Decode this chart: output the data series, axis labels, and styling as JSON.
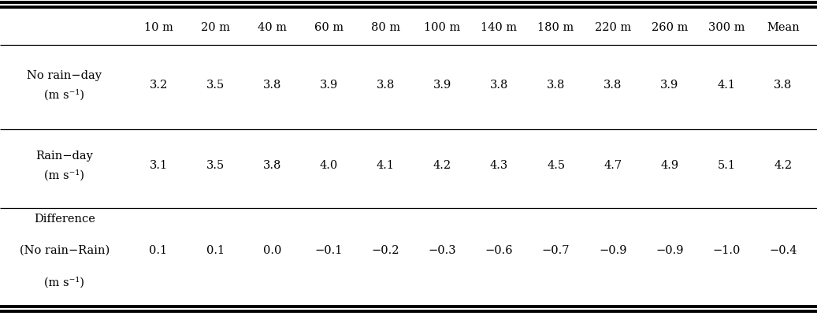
{
  "columns": [
    "10 m",
    "20 m",
    "40 m",
    "60 m",
    "80 m",
    "100 m",
    "140 m",
    "180 m",
    "220 m",
    "260 m",
    "300 m",
    "Mean"
  ],
  "row_values": [
    [
      "3.2",
      "3.5",
      "3.8",
      "3.9",
      "3.8",
      "3.9",
      "3.8",
      "3.8",
      "3.8",
      "3.9",
      "4.1",
      "3.8"
    ],
    [
      "3.1",
      "3.5",
      "3.8",
      "4.0",
      "4.1",
      "4.2",
      "4.3",
      "4.5",
      "4.7",
      "4.9",
      "5.1",
      "4.2"
    ],
    [
      "0.1",
      "0.1",
      "0.0",
      "−0.1",
      "−0.2",
      "−0.3",
      "−0.6",
      "−0.7",
      "−0.9",
      "−0.9",
      "−1.0",
      "−0.4"
    ]
  ],
  "bg_color": "#ffffff",
  "text_color": "#000000",
  "line_color": "#000000",
  "font_size": 10.5
}
